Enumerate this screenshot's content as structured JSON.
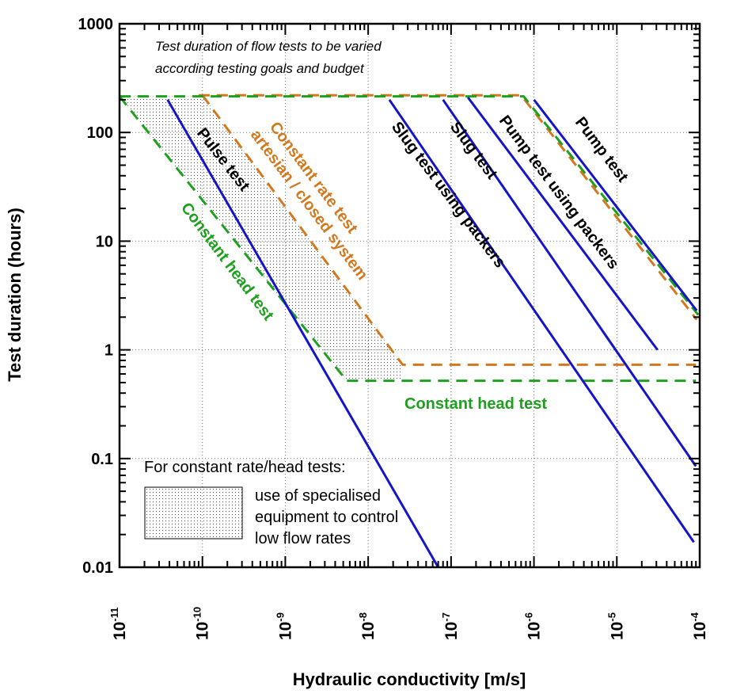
{
  "chart_data": {
    "type": "line",
    "xlabel": "Hydraulic conductivity [m/s]",
    "ylabel": "Test duration (hours)",
    "xscale": "log",
    "yscale": "log",
    "xlim": [
      1e-11,
      0.0001
    ],
    "ylim": [
      0.01,
      1000
    ],
    "grid": "dotted",
    "x_ticks": [
      {
        "base": "10",
        "exp": "-11",
        "value": 1e-11
      },
      {
        "base": "10",
        "exp": "-10",
        "value": 1e-10
      },
      {
        "base": "10",
        "exp": "-9",
        "value": 1e-09
      },
      {
        "base": "10",
        "exp": "-8",
        "value": 1e-08
      },
      {
        "base": "10",
        "exp": "-7",
        "value": 1e-07
      },
      {
        "base": "10",
        "exp": "-6",
        "value": 1e-06
      },
      {
        "base": "10",
        "exp": "-5",
        "value": 1e-05
      },
      {
        "base": "10",
        "exp": "-4",
        "value": 0.0001
      }
    ],
    "y_ticks": [
      {
        "label": "1000",
        "value": 1000
      },
      {
        "label": "100",
        "value": 100
      },
      {
        "label": "10",
        "value": 10
      },
      {
        "label": "1",
        "value": 1
      },
      {
        "label": "0.1",
        "value": 0.1
      },
      {
        "label": "0.01",
        "value": 0.01
      }
    ],
    "colors": {
      "blue": "#1414c8",
      "orange": "#d2781e",
      "green": "#1ea01e",
      "axis": "#000000"
    },
    "series": [
      {
        "label": "Pulse test",
        "color": "#1414c8",
        "dash": "solid",
        "points": [
          [
            3.8e-11,
            200
          ],
          [
            7e-08,
            0.01
          ]
        ]
      },
      {
        "label": "Slug test using packers",
        "color": "#1414c8",
        "dash": "solid",
        "points": [
          [
            1.8e-08,
            200
          ],
          [
            8.5e-05,
            0.017
          ]
        ]
      },
      {
        "label": "Slug test",
        "color": "#1414c8",
        "dash": "solid",
        "points": [
          [
            8e-08,
            200
          ],
          [
            9e-05,
            0.085
          ]
        ]
      },
      {
        "label": "Pump test using packers",
        "color": "#1414c8",
        "dash": "solid",
        "points": [
          [
            1.6e-07,
            210
          ],
          [
            3.1e-05,
            1.0
          ]
        ]
      },
      {
        "label": "Pump test",
        "color": "#1414c8",
        "dash": "solid",
        "points": [
          [
            1e-06,
            200
          ],
          [
            9.2e-05,
            2.3
          ]
        ]
      },
      {
        "label": "Constant rate test artesian / closed system",
        "color": "#d2781e",
        "dash": "dashed",
        "points": [
          [
            9e-11,
            220
          ],
          [
            7e-07,
            220
          ],
          [
            9.2e-05,
            1.9
          ]
        ]
      },
      {
        "label": "Constant rate test artesian / closed system",
        "color": "#d2781e",
        "dash": "dashed",
        "points": [
          [
            1e-10,
            220
          ],
          [
            2.6e-08,
            0.73
          ],
          [
            9e-05,
            0.73
          ]
        ]
      },
      {
        "label": "Constant head test",
        "color": "#1ea01e",
        "dash": "dashed",
        "points": [
          [
            1e-11,
            215
          ],
          [
            7.5e-07,
            215
          ],
          [
            9.6e-05,
            2.1
          ]
        ]
      },
      {
        "label": "Constant head test",
        "color": "#1ea01e",
        "dash": "dashed",
        "points": [
          [
            1e-11,
            215
          ],
          [
            5.5e-09,
            0.52
          ],
          [
            9e-05,
            0.52
          ]
        ]
      }
    ],
    "line_labels": [
      {
        "text": "Pulse test",
        "color": "#1414c8",
        "text_color": "#000000"
      },
      {
        "text": "Constant rate test",
        "color": "#d2781e"
      },
      {
        "text": "artesian / closed system",
        "color": "#d2781e"
      },
      {
        "text": "Constant head test",
        "color": "#1ea01e"
      },
      {
        "text": "Slug test using  packers",
        "color": "#000000"
      },
      {
        "text": "Slug test",
        "color": "#000000"
      },
      {
        "text": "Pump test using packers",
        "color": "#000000"
      },
      {
        "text": "Pump test",
        "color": "#000000"
      },
      {
        "text": "Constant head test",
        "color": "#1ea01e"
      }
    ],
    "annotations": {
      "note_line1": "Test duration of flow tests to be varied",
      "note_line2": "according testing goals and budget"
    },
    "legend": {
      "title": "For constant rate/head tests:",
      "line1": "use of specialised",
      "line2": "equipment to control",
      "line3": "low flow rates",
      "placement": "bottom-left"
    }
  }
}
